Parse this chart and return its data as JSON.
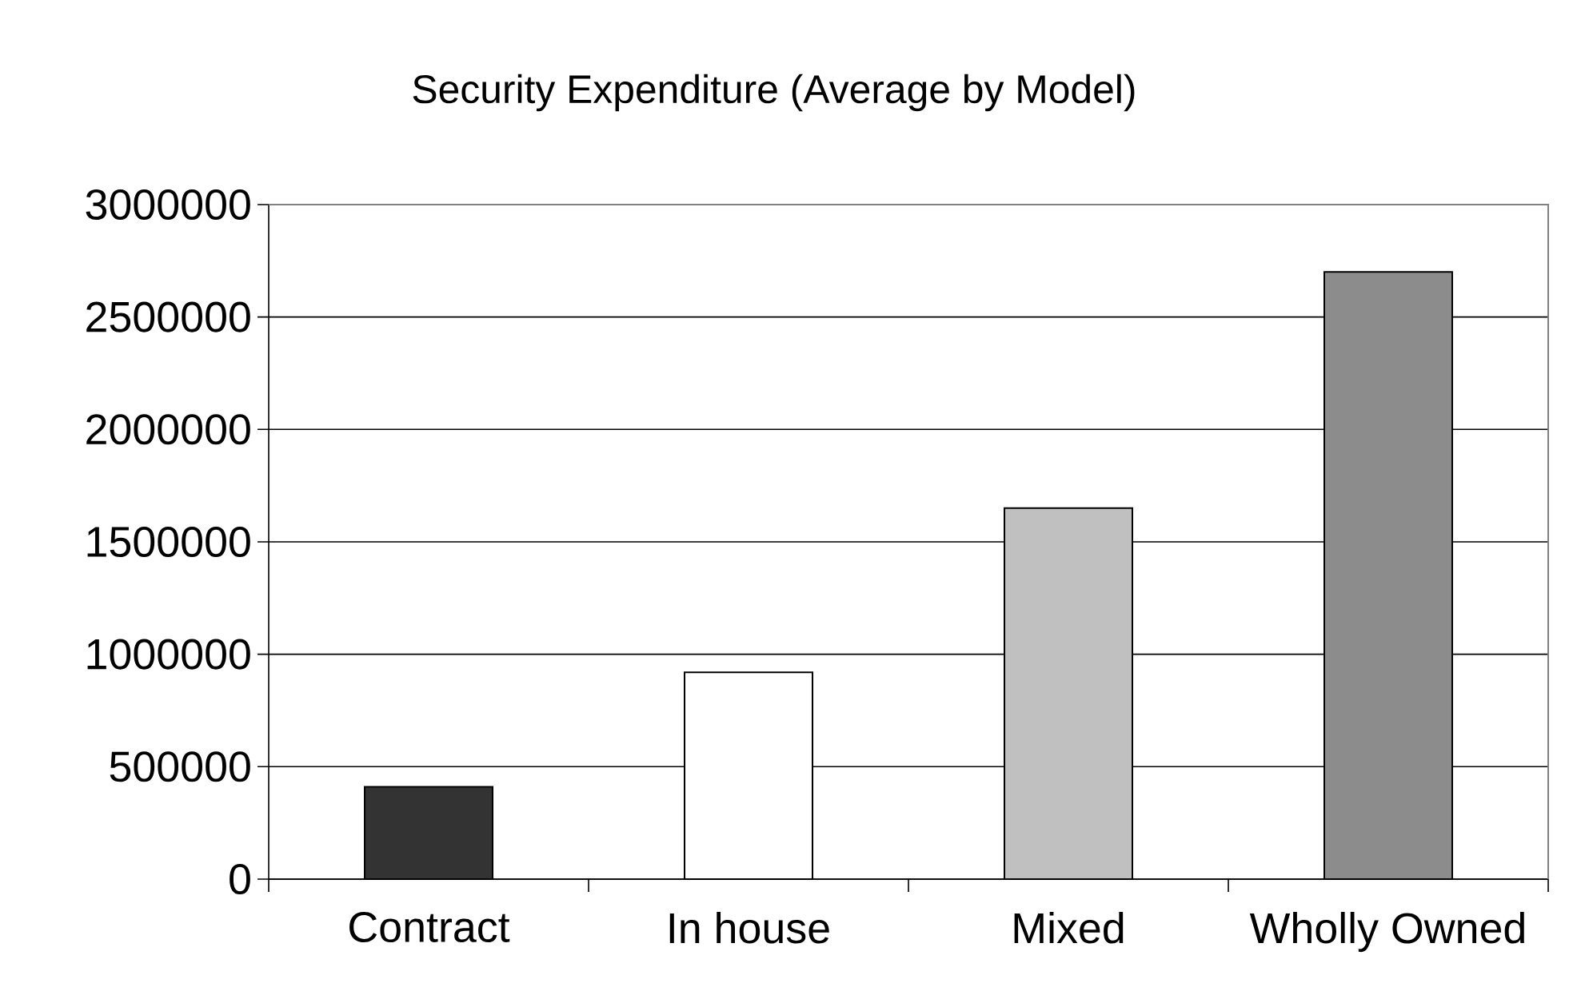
{
  "chart_data": {
    "type": "bar",
    "title": "Security Expenditure (Average by Model)",
    "categories": [
      "Contract",
      "In house",
      "Mixed",
      "Wholly Owned"
    ],
    "values": [
      410000,
      920000,
      1650000,
      2700000
    ],
    "colors": [
      "#333333",
      "#ffffff",
      "#c0c0c0",
      "#8c8c8c"
    ],
    "ylim": [
      0,
      3000000
    ],
    "yticks": [
      0,
      500000,
      1000000,
      1500000,
      2000000,
      2500000,
      3000000
    ],
    "grid": "y"
  }
}
